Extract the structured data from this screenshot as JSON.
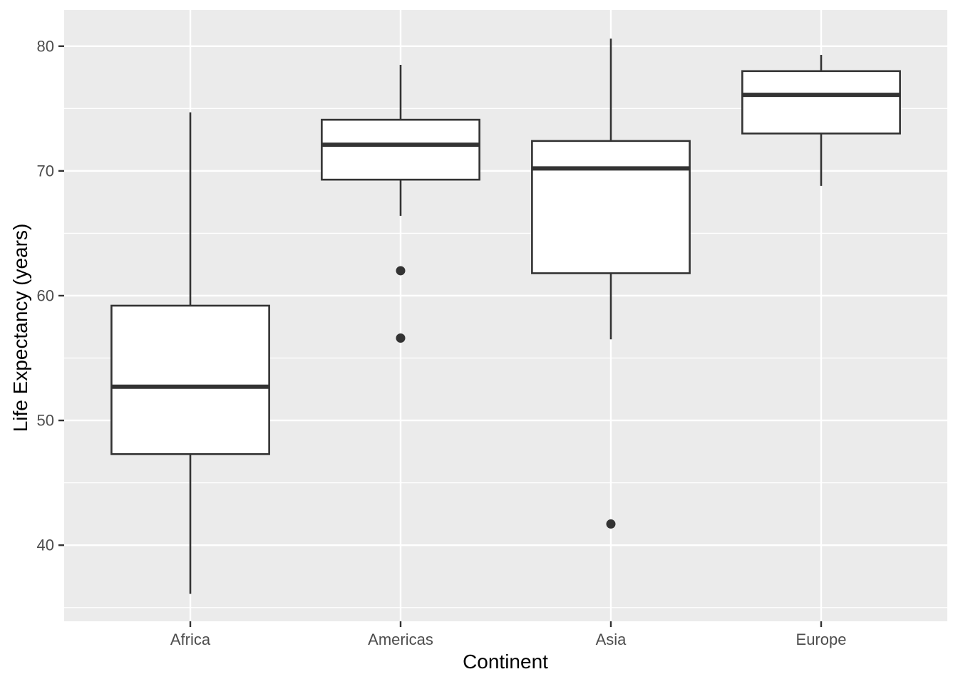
{
  "chart": {
    "background": "#FFFFFF",
    "panel_bg": "#EBEBEB",
    "grid_color": "#FFFFFF",
    "box_fill": "#FFFFFF",
    "box_stroke": "#333333",
    "outlier_color": "#333333",
    "tick_mark_color": "#333333",
    "tick_label_color": "#4D4D4D",
    "axis_title_color": "#000000"
  },
  "chart_data": {
    "type": "boxplot",
    "title": "",
    "xlabel": "Continent",
    "ylabel": "Life Expectancy (years)",
    "categories": [
      "Africa",
      "Americas",
      "Asia",
      "Europe"
    ],
    "y_axis": {
      "ticks": [
        40,
        50,
        60,
        70,
        80
      ],
      "minor_ticks": [
        35,
        45,
        55,
        65,
        75
      ],
      "range": [
        33.9,
        82.9
      ]
    },
    "grid": "on",
    "legend": "none",
    "series": [
      {
        "category": "Africa",
        "whisker_low": 36.1,
        "q1": 47.3,
        "median": 52.7,
        "q3": 59.2,
        "whisker_high": 74.7,
        "outliers": []
      },
      {
        "category": "Americas",
        "whisker_low": 66.4,
        "q1": 69.3,
        "median": 72.1,
        "q3": 74.1,
        "whisker_high": 78.5,
        "outliers": [
          62.0,
          56.6
        ]
      },
      {
        "category": "Asia",
        "whisker_low": 56.5,
        "q1": 61.8,
        "median": 70.2,
        "q3": 72.4,
        "whisker_high": 80.6,
        "outliers": [
          41.7
        ]
      },
      {
        "category": "Europe",
        "whisker_low": 68.8,
        "q1": 73.0,
        "median": 76.1,
        "q3": 78.0,
        "whisker_high": 79.3,
        "outliers": []
      }
    ]
  }
}
